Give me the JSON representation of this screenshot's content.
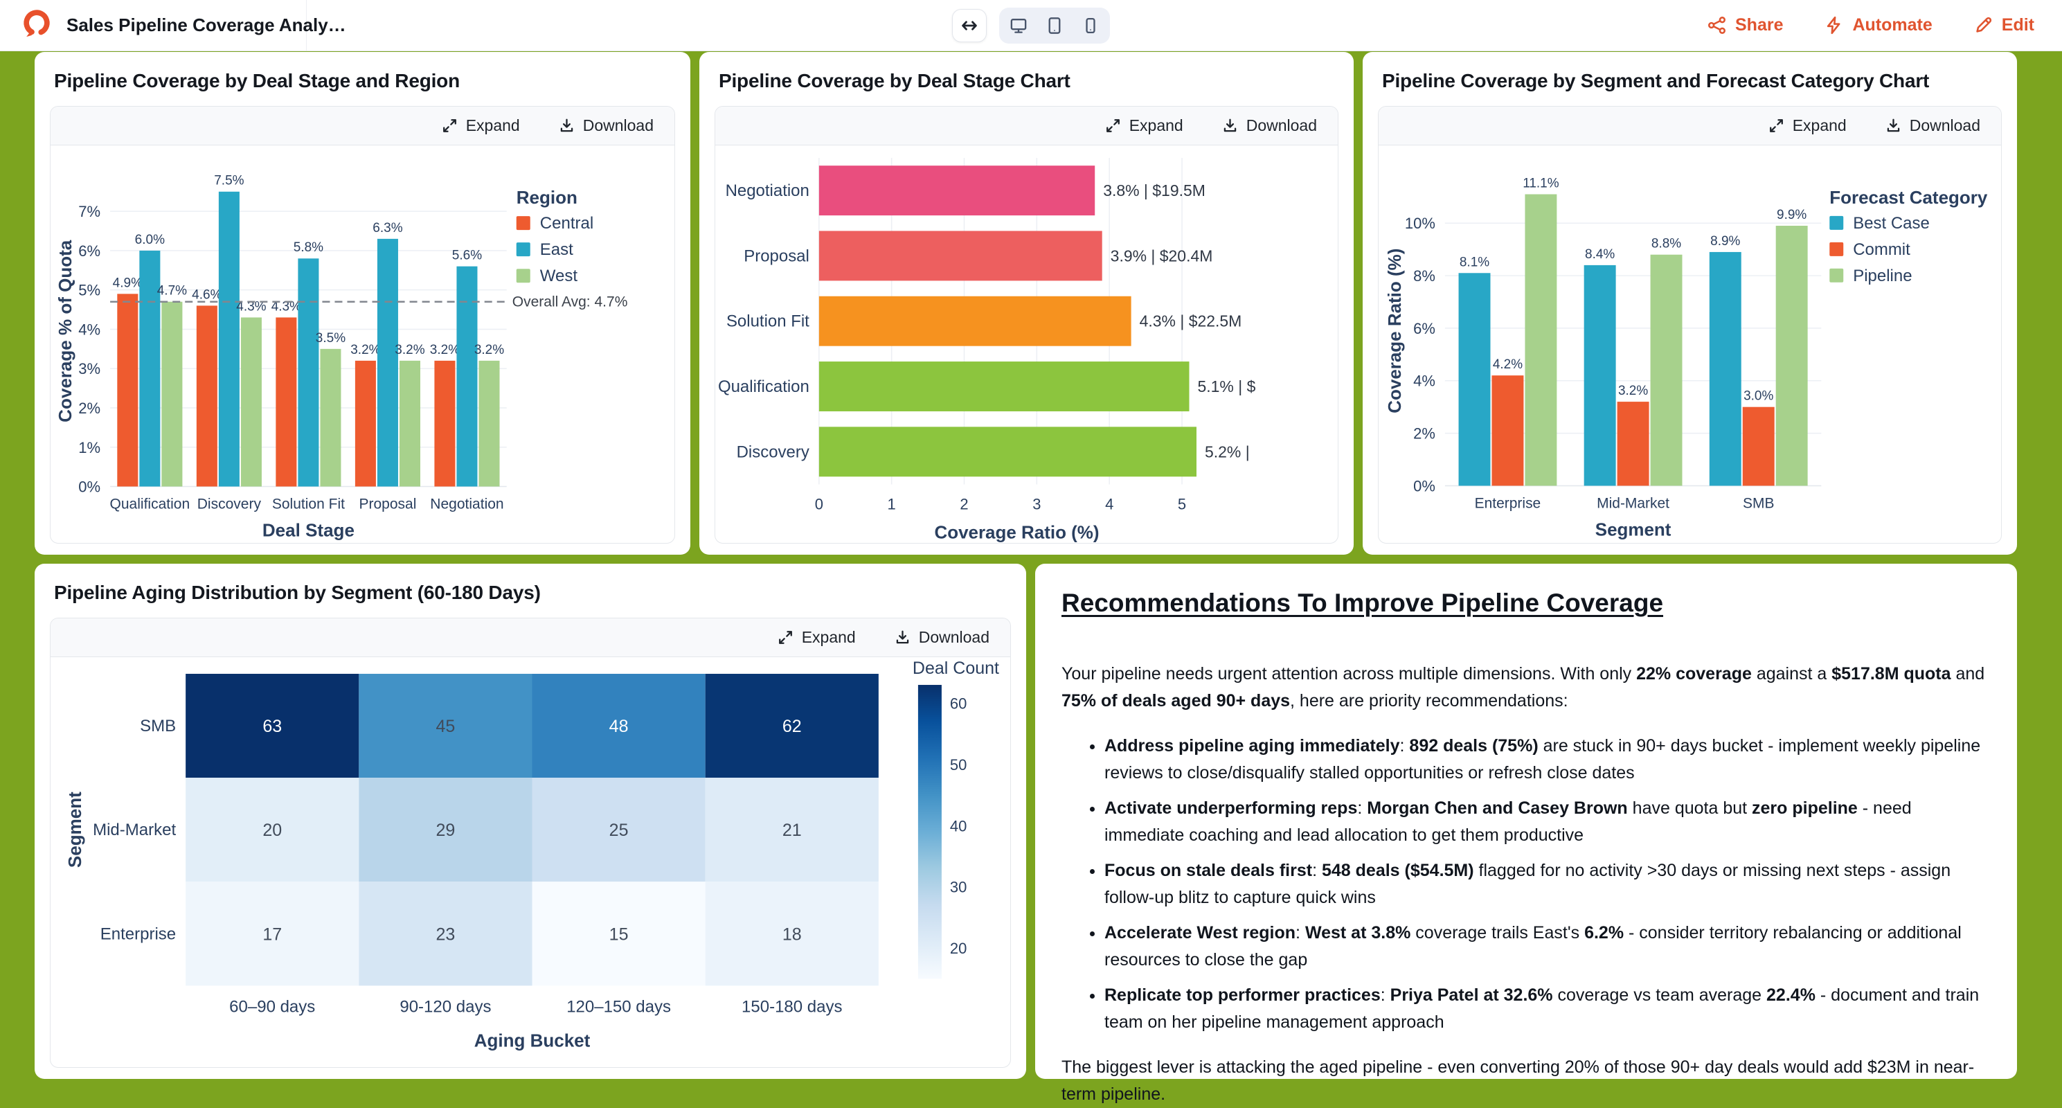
{
  "header": {
    "title": "Sales Pipeline Coverage Analy…",
    "actions": {
      "share": "Share",
      "automate": "Automate",
      "edit": "Edit"
    }
  },
  "widget": {
    "expand_label": "Expand",
    "download_label": "Download"
  },
  "tiles": {
    "stage_region": {
      "title": "Pipeline Coverage by Deal Stage and Region"
    },
    "deal_stage": {
      "title": "Pipeline Coverage by Deal Stage Chart"
    },
    "segment_forecast": {
      "title": "Pipeline Coverage by Segment and Forecast Category Chart"
    },
    "aging": {
      "title": "Pipeline Aging Distribution by Segment (60-180 Days)"
    }
  },
  "chart_data": [
    {
      "id": "stage-region-bars",
      "type": "bar",
      "title": "Pipeline Coverage by Deal Stage and Region",
      "categories": [
        "Qualification",
        "Discovery",
        "Solution Fit",
        "Proposal",
        "Negotiation"
      ],
      "series": [
        {
          "name": "Central",
          "color": "#EE5B2F",
          "values": [
            4.9,
            4.6,
            4.3,
            3.2,
            3.2
          ]
        },
        {
          "name": "East",
          "color": "#28A7C6",
          "values": [
            6.0,
            7.5,
            5.8,
            6.3,
            5.6
          ]
        },
        {
          "name": "West",
          "color": "#A7D18C",
          "values": [
            4.7,
            4.3,
            3.5,
            3.2,
            3.2
          ]
        }
      ],
      "xlabel": "Deal Stage",
      "ylabel": "Coverage % of Quota",
      "yticks": [
        0,
        1,
        2,
        3,
        4,
        5,
        6,
        7
      ],
      "ytick_suffix": "%",
      "ylim": [
        0,
        7.9
      ],
      "legend_title": "Region",
      "legend_position": "right",
      "grid": true,
      "ref_line": {
        "value": 4.7,
        "label": "Overall Avg: 4.7%"
      }
    },
    {
      "id": "deal-stage-hbar",
      "type": "bar",
      "orientation": "horizontal",
      "title": "Pipeline Coverage by Deal Stage Chart",
      "categories": [
        "Negotiation",
        "Proposal",
        "Solution Fit",
        "Qualification",
        "Discovery"
      ],
      "values": [
        3.8,
        3.9,
        4.3,
        5.1,
        5.2
      ],
      "labels": [
        "3.8% | $19.5M",
        "3.9% | $20.4M",
        "4.3% | $22.5M",
        "5.1% | $",
        "5.2% |"
      ],
      "colors": [
        "#E94E7E",
        "#ED5F5F",
        "#F6921F",
        "#8CC53E",
        "#8CC53E"
      ],
      "xlabel": "Coverage Ratio (%)",
      "xticks": [
        0,
        1,
        2,
        3,
        4,
        5
      ],
      "xlim": [
        0,
        5.45
      ],
      "grid": true
    },
    {
      "id": "segment-forecast-bars",
      "type": "bar",
      "title": "Pipeline Coverage by Segment and Forecast Category Chart",
      "categories": [
        "Enterprise",
        "Mid-Market",
        "SMB"
      ],
      "series": [
        {
          "name": "Best Case",
          "color": "#28A7C6",
          "values": [
            8.1,
            8.4,
            8.9
          ]
        },
        {
          "name": "Commit",
          "color": "#EE5B2F",
          "values": [
            4.2,
            3.2,
            3.0
          ]
        },
        {
          "name": "Pipeline",
          "color": "#A7D18C",
          "values": [
            11.1,
            8.8,
            9.9
          ]
        }
      ],
      "xlabel": "Segment",
      "ylabel": "Coverage Ratio (%)",
      "yticks": [
        0,
        2,
        4,
        6,
        8,
        10
      ],
      "ytick_suffix": "%",
      "ylim": [
        0,
        11.8
      ],
      "legend_title": "Forecast Category",
      "legend_position": "right",
      "grid": true
    },
    {
      "id": "aging-heatmap",
      "type": "heatmap",
      "title": "Pipeline Aging Distribution by Segment (60-180 Days)",
      "rows": [
        "SMB",
        "Mid-Market",
        "Enterprise"
      ],
      "columns": [
        "60–90 days",
        "90-120 days",
        "120–150 days",
        "150-180 days"
      ],
      "values": [
        [
          63,
          45,
          48,
          62
        ],
        [
          20,
          29,
          25,
          21
        ],
        [
          17,
          23,
          15,
          18
        ]
      ],
      "xlabel": "Aging Bucket",
      "ylabel": "Segment",
      "colorscale": "Blues",
      "colorbar": {
        "title": "Deal Count",
        "ticks": [
          20,
          30,
          40,
          50,
          60
        ],
        "min": 15,
        "max": 63
      }
    }
  ],
  "recommendations": {
    "heading": "Recommendations To Improve Pipeline Coverage",
    "intro": [
      {
        "t": "Your pipeline needs urgent attention across multiple dimensions. With only ",
        "b": false
      },
      {
        "t": "22% coverage",
        "b": true
      },
      {
        "t": " against a ",
        "b": false
      },
      {
        "t": "$517.8M quota",
        "b": true
      },
      {
        "t": " and ",
        "b": false
      },
      {
        "t": "75% of deals aged 90+ days",
        "b": true
      },
      {
        "t": ", here are priority recommendations:",
        "b": false
      }
    ],
    "bullets": [
      [
        {
          "t": "Address pipeline aging immediately",
          "b": true
        },
        {
          "t": ": ",
          "b": false
        },
        {
          "t": "892 deals (75%)",
          "b": true
        },
        {
          "t": " are stuck in 90+ days bucket - implement weekly pipeline reviews to close/disqualify stalled opportunities or refresh close dates",
          "b": false
        }
      ],
      [
        {
          "t": "Activate underperforming reps",
          "b": true
        },
        {
          "t": ": ",
          "b": false
        },
        {
          "t": "Morgan Chen and Casey Brown",
          "b": true
        },
        {
          "t": " have quota but ",
          "b": false
        },
        {
          "t": "zero pipeline",
          "b": true
        },
        {
          "t": " - need immediate coaching and lead allocation to get them productive",
          "b": false
        }
      ],
      [
        {
          "t": "Focus on stale deals first",
          "b": true
        },
        {
          "t": ": ",
          "b": false
        },
        {
          "t": "548 deals ($54.5M)",
          "b": true
        },
        {
          "t": " flagged for no activity >30 days or missing next steps - assign follow-up blitz to capture quick wins",
          "b": false
        }
      ],
      [
        {
          "t": "Accelerate West region",
          "b": true
        },
        {
          "t": ": ",
          "b": false
        },
        {
          "t": "West at 3.8%",
          "b": true
        },
        {
          "t": " coverage trails East's ",
          "b": false
        },
        {
          "t": "6.2%",
          "b": true
        },
        {
          "t": " - consider territory rebalancing or additional resources to close the gap",
          "b": false
        }
      ],
      [
        {
          "t": "Replicate top performer practices",
          "b": true
        },
        {
          "t": ": ",
          "b": false
        },
        {
          "t": "Priya Patel at 32.6%",
          "b": true
        },
        {
          "t": " coverage vs team average ",
          "b": false
        },
        {
          "t": "22.4%",
          "b": true
        },
        {
          "t": " - document and train team on her pipeline management approach",
          "b": false
        }
      ]
    ],
    "closing": "The biggest lever is attacking the aged pipeline - even converting 20% of those 90+ day deals would add $23M in near-term pipeline.",
    "colors": {
      "background": "#7CA41F",
      "accent": "#E0542F",
      "axis_text": "#2A3F5F"
    }
  }
}
